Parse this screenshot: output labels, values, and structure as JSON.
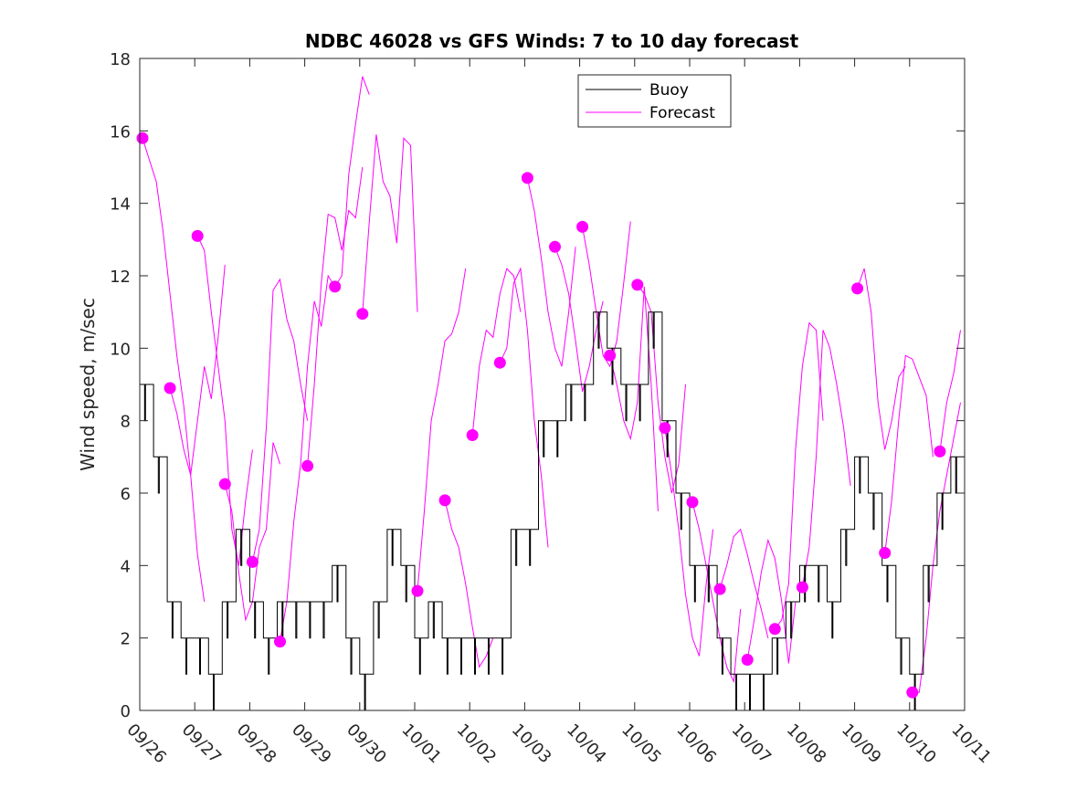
{
  "chart_data": {
    "type": "line",
    "title": "NDBC 46028 vs GFS Winds: 7 to 10 day forecast",
    "xlabel": "",
    "ylabel": "Wind speed, m/sec",
    "ylim": [
      0,
      18
    ],
    "yticks": [
      0,
      2,
      4,
      6,
      8,
      10,
      12,
      14,
      16,
      18
    ],
    "xlim_days": [
      0,
      15
    ],
    "xticks": [
      "09/26",
      "09/27",
      "09/28",
      "09/29",
      "09/30",
      "10/01",
      "10/02",
      "10/03",
      "10/04",
      "10/05",
      "10/06",
      "10/07",
      "10/08",
      "10/09",
      "10/10",
      "10/11"
    ],
    "x_unit": "days since 09/26 00:00",
    "grid": false,
    "legend": {
      "position": "top-center",
      "entries": [
        {
          "label": "Buoy",
          "color": "#000000"
        },
        {
          "label": "Forecast",
          "color": "#ff00ff"
        }
      ]
    },
    "series": [
      {
        "name": "Buoy",
        "color": "#000000",
        "x_step_days": 0.25,
        "values": [
          9,
          7,
          3,
          2,
          2,
          1,
          3,
          5,
          3,
          2,
          3,
          3,
          3,
          3,
          4,
          2,
          1,
          3,
          5,
          4,
          2,
          3,
          2,
          2,
          2,
          2,
          2,
          5,
          5,
          8,
          8,
          9,
          9,
          11,
          10,
          9,
          9,
          11,
          8,
          6,
          4,
          4,
          2,
          1,
          1,
          1,
          2,
          3,
          4,
          4,
          3,
          5,
          7,
          6,
          4,
          2,
          1,
          4,
          6,
          7,
          8
        ]
      }
    ],
    "forecasts": {
      "name": "Forecast",
      "color": "#ff00ff",
      "x_step_days": 0.125,
      "runs": [
        {
          "start": 0.05,
          "values": [
            15.8,
            15.2,
            14.6,
            13.2,
            11.5,
            9.8,
            8.4,
            6.5,
            4.3,
            3.0
          ]
        },
        {
          "start": 0.55,
          "values": [
            8.9,
            8.2,
            7.2,
            6.5,
            8.0,
            9.5,
            8.6,
            10.3,
            12.3
          ]
        },
        {
          "start": 1.05,
          "values": [
            13.1,
            12.7,
            11.0,
            9.5,
            8.0,
            5.0,
            4.0,
            5.8,
            7.2
          ]
        },
        {
          "start": 1.55,
          "values": [
            6.25,
            5.5,
            3.8,
            2.5,
            3.0,
            4.5,
            5.0,
            7.4,
            6.8
          ]
        },
        {
          "start": 2.05,
          "values": [
            4.1,
            5.0,
            7.8,
            11.6,
            11.9,
            10.8,
            10.2,
            9.0,
            8.0
          ]
        },
        {
          "start": 2.55,
          "values": [
            1.9,
            3.0,
            5.2,
            6.8,
            9.5,
            11.3,
            10.6,
            12.0,
            11.7
          ]
        },
        {
          "start": 3.05,
          "values": [
            6.75,
            9.0,
            11.8,
            13.7,
            13.6,
            12.7,
            13.8,
            13.6,
            15.0
          ]
        },
        {
          "start": 3.55,
          "values": [
            11.7,
            12.0,
            14.8,
            16.2,
            17.5,
            17.0
          ]
        },
        {
          "start": 4.05,
          "values": [
            10.95,
            13.5,
            15.9,
            14.6,
            14.2,
            12.9,
            15.8,
            15.6,
            11.0
          ]
        },
        {
          "start": 5.05,
          "values": [
            3.3,
            5.5,
            8.0,
            9.0,
            10.2,
            10.4,
            11.0,
            12.2
          ]
        },
        {
          "start": 5.55,
          "values": [
            5.8,
            5.0,
            4.5,
            3.5,
            2.3,
            1.2,
            1.5,
            2.0
          ]
        },
        {
          "start": 6.05,
          "values": [
            7.6,
            9.5,
            10.5,
            10.3,
            11.5,
            12.2,
            12.0,
            11.0
          ]
        },
        {
          "start": 6.55,
          "values": [
            9.6,
            10.0,
            11.8,
            12.2,
            10.5,
            8.0,
            6.5,
            4.5
          ]
        },
        {
          "start": 7.05,
          "values": [
            14.7,
            13.8,
            12.5,
            11.0,
            10.0,
            9.5,
            11.0,
            12.8
          ]
        },
        {
          "start": 7.55,
          "values": [
            12.8,
            12.3,
            11.5,
            10.2,
            8.8,
            9.5,
            10.5,
            11.3
          ]
        },
        {
          "start": 8.05,
          "values": [
            13.35,
            12.3,
            11.0,
            9.8,
            9.5,
            10.2,
            11.8,
            13.5
          ]
        },
        {
          "start": 8.55,
          "values": [
            9.8,
            9.0,
            8.0,
            7.5,
            8.5,
            11.7,
            9.0,
            5.5
          ]
        },
        {
          "start": 9.05,
          "values": [
            11.75,
            11.5,
            11.0,
            8.5,
            7.0,
            6.0,
            6.8,
            9.0
          ]
        },
        {
          "start": 9.55,
          "values": [
            7.8,
            6.5,
            5.0,
            3.2,
            2.0,
            1.5,
            3.5,
            5.0
          ]
        },
        {
          "start": 10.05,
          "values": [
            5.75,
            5.0,
            4.0,
            3.0,
            2.0,
            1.2,
            0.8,
            2.8
          ]
        },
        {
          "start": 10.55,
          "values": [
            3.35,
            4.0,
            4.8,
            5.0,
            4.3,
            3.5,
            2.8,
            2.0
          ]
        },
        {
          "start": 11.05,
          "values": [
            1.4,
            2.5,
            3.8,
            4.7,
            4.2,
            3.0,
            1.3,
            3.0
          ]
        },
        {
          "start": 11.55,
          "values": [
            2.25,
            2.5,
            3.5,
            7.2,
            9.5,
            10.7,
            10.5,
            8.0
          ]
        },
        {
          "start": 12.05,
          "values": [
            3.4,
            4.5,
            7.0,
            10.5,
            10.0,
            9.0,
            7.8,
            6.2
          ]
        },
        {
          "start": 13.05,
          "values": [
            11.65,
            12.2,
            11.0,
            8.5,
            7.2,
            8.0,
            9.2,
            9.5
          ]
        },
        {
          "start": 13.55,
          "values": [
            4.35,
            5.8,
            8.0,
            9.8,
            9.7,
            9.2,
            8.7,
            7.0
          ]
        },
        {
          "start": 14.05,
          "values": [
            0.5,
            0.5,
            2.0,
            4.0,
            5.5,
            6.5,
            7.5,
            8.5
          ]
        },
        {
          "start": 14.55,
          "values": [
            7.15,
            8.5,
            9.3,
            10.5
          ]
        }
      ]
    }
  }
}
